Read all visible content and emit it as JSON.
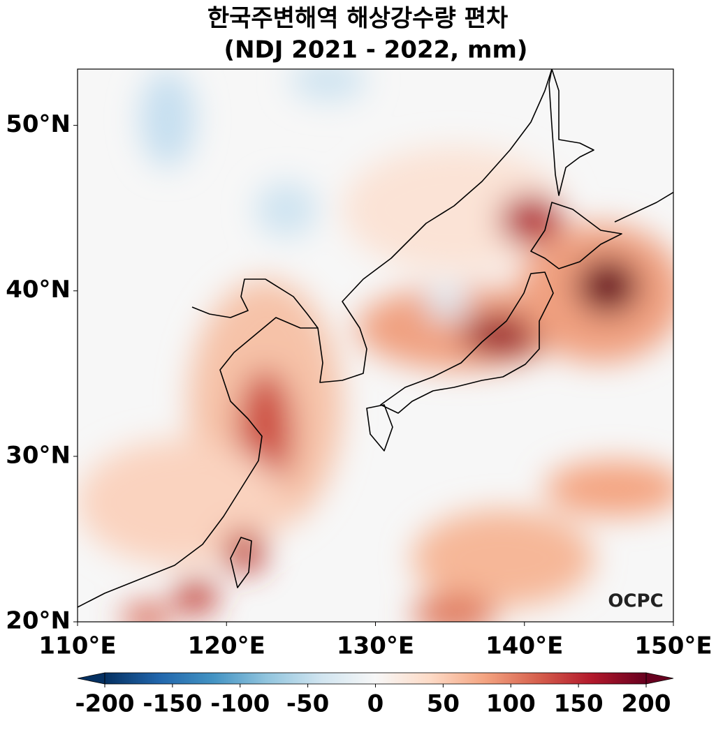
{
  "title": [
    "한국주변해역 해상강수량 편차",
    "(NDJ 2021 - 2022, mm)"
  ],
  "map": {
    "xlim": [
      110,
      150
    ],
    "ylim": [
      20,
      53.4
    ],
    "xticks": [
      {
        "value": 110,
        "label": "110°E"
      },
      {
        "value": 120,
        "label": "120°E"
      },
      {
        "value": 130,
        "label": "130°E"
      },
      {
        "value": 140,
        "label": "140°E"
      },
      {
        "value": 150,
        "label": "150°E"
      }
    ],
    "yticks": [
      {
        "value": 20,
        "label": "20°N"
      },
      {
        "value": 30,
        "label": "30°N"
      },
      {
        "value": 40,
        "label": "40°N"
      },
      {
        "value": 50,
        "label": "50°N"
      }
    ]
  },
  "colorbar": {
    "lim": [
      -200,
      200
    ],
    "ticks": [
      -200,
      -150,
      -100,
      -50,
      0,
      50,
      100,
      150,
      200
    ],
    "colors": [
      "#053061",
      "#2166ac",
      "#4393c3",
      "#92c5de",
      "#d1e5f0",
      "#f7f7f7",
      "#fddbc7",
      "#f4a582",
      "#d6604d",
      "#b2182b",
      "#67001f"
    ]
  },
  "watermark": "OCPC"
}
